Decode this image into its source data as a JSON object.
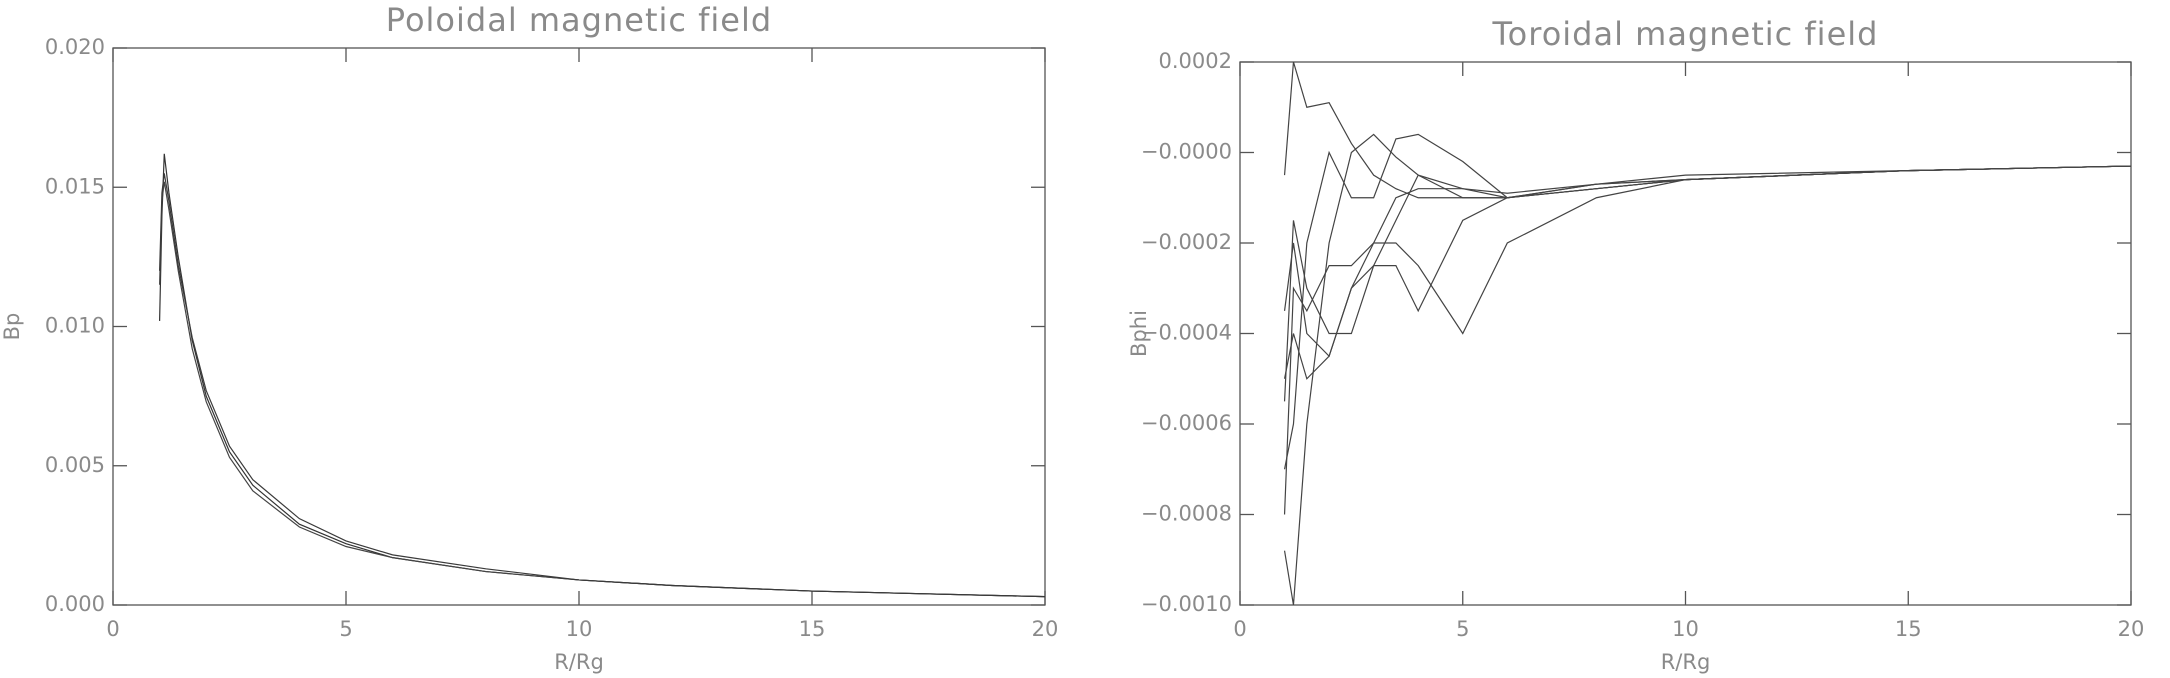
{
  "chart_data": [
    {
      "type": "line",
      "title": "Poloidal magnetic field",
      "xlabel": "R/Rg",
      "ylabel": "Bp",
      "x": [
        1.0,
        1.05,
        1.1,
        1.2,
        1.4,
        1.7,
        2,
        2.5,
        3,
        4,
        5,
        6,
        8,
        10,
        12,
        15,
        20
      ],
      "series": [
        {
          "color": "#333333",
          "values": [
            0.0102,
            0.014,
            0.0162,
            0.0148,
            0.0125,
            0.0095,
            0.0075,
            0.0055,
            0.0043,
            0.0029,
            0.0022,
            0.0017,
            0.0012,
            0.0009,
            0.0007,
            0.0005,
            0.0003
          ]
        },
        {
          "color": "#444444",
          "values": [
            0.0115,
            0.0145,
            0.0152,
            0.0142,
            0.012,
            0.0092,
            0.0073,
            0.0053,
            0.0041,
            0.0028,
            0.0021,
            0.0017,
            0.0012,
            0.0009,
            0.0007,
            0.0005,
            0.0003
          ]
        },
        {
          "color": "#3a3a3a",
          "values": [
            0.012,
            0.0148,
            0.0155,
            0.0145,
            0.0122,
            0.0096,
            0.0077,
            0.0057,
            0.0045,
            0.0031,
            0.0023,
            0.0018,
            0.0013,
            0.0009,
            0.0007,
            0.0005,
            0.0003
          ]
        }
      ],
      "xlim": [
        0,
        20
      ],
      "xticks": [
        0,
        5,
        10,
        15,
        20
      ],
      "ylim": [
        0,
        0.02
      ],
      "yticks": [
        {
          "value": 0,
          "label": "0.000"
        },
        {
          "value": 0.005,
          "label": "0.005"
        },
        {
          "value": 0.01,
          "label": "0.010"
        },
        {
          "value": 0.015,
          "label": "0.015"
        },
        {
          "value": 0.02,
          "label": "0.020"
        }
      ]
    },
    {
      "type": "line",
      "title": "Toroidal magnetic field",
      "xlabel": "R/Rg",
      "ylabel": "Bphi",
      "x": [
        1.0,
        1.2,
        1.5,
        2,
        2.5,
        3,
        3.5,
        4,
        5,
        6,
        8,
        10,
        15,
        20
      ],
      "series": [
        {
          "color": "#444444",
          "values": [
            -5e-05,
            0.0002,
            0.0001,
            0.00011,
            2e-05,
            -5e-05,
            -8e-05,
            -0.0001,
            -0.0001,
            -0.0001,
            -7e-05,
            -6e-05,
            -4e-05,
            -3e-05
          ]
        },
        {
          "color": "#444444",
          "values": [
            -0.00088,
            -0.001,
            -0.0006,
            -0.0002,
            0.0,
            4e-05,
            -1e-05,
            -5e-05,
            -0.0001,
            -0.0001,
            -8e-05,
            -6e-05,
            -4e-05,
            -3e-05
          ]
        },
        {
          "color": "#444444",
          "values": [
            -0.0005,
            -0.0004,
            -0.0005,
            -0.00045,
            -0.0003,
            -0.0002,
            -0.0001,
            -8e-05,
            -8e-05,
            -9e-05,
            -7e-05,
            -6e-05,
            -4e-05,
            -3e-05
          ]
        },
        {
          "color": "#444444",
          "values": [
            -0.00055,
            -0.00015,
            -0.0003,
            -0.0004,
            -0.0004,
            -0.00025,
            -0.00015,
            -5e-05,
            -8e-05,
            -0.0001,
            -8e-05,
            -6e-05,
            -4e-05,
            -3e-05
          ]
        },
        {
          "color": "#444444",
          "values": [
            -0.0008,
            -0.0003,
            -0.00035,
            -0.00025,
            -0.00025,
            -0.0002,
            -0.0002,
            -0.00025,
            -0.0004,
            -0.0002,
            -0.0001,
            -6e-05,
            -4e-05,
            -3e-05
          ]
        },
        {
          "color": "#444444",
          "values": [
            -0.00035,
            -0.0002,
            -0.0004,
            -0.00045,
            -0.0003,
            -0.00025,
            -0.00025,
            -0.00035,
            -0.00015,
            -0.0001,
            -7e-05,
            -5e-05,
            -4e-05,
            -3e-05
          ]
        },
        {
          "color": "#444444",
          "values": [
            -0.0007,
            -0.0006,
            -0.0002,
            0.0,
            -0.0001,
            -0.0001,
            3e-05,
            4e-05,
            -2e-05,
            -0.0001,
            -8e-05,
            -6e-05,
            -4e-05,
            -3e-05
          ]
        }
      ],
      "xlim": [
        0,
        20
      ],
      "xticks": [
        0,
        5,
        10,
        15,
        20
      ],
      "ylim": [
        -0.001,
        0.0002
      ],
      "yticks": [
        {
          "value": -0.001,
          "label": "−0.0010"
        },
        {
          "value": -0.0008,
          "label": "−0.0008"
        },
        {
          "value": -0.0006,
          "label": "−0.0006"
        },
        {
          "value": -0.0004,
          "label": "−0.0004"
        },
        {
          "value": -0.0002,
          "label": "−0.0002"
        },
        {
          "value": 0,
          "label": "−0.0000"
        },
        {
          "value": 0.0002,
          "label": "0.0002"
        }
      ]
    }
  ]
}
